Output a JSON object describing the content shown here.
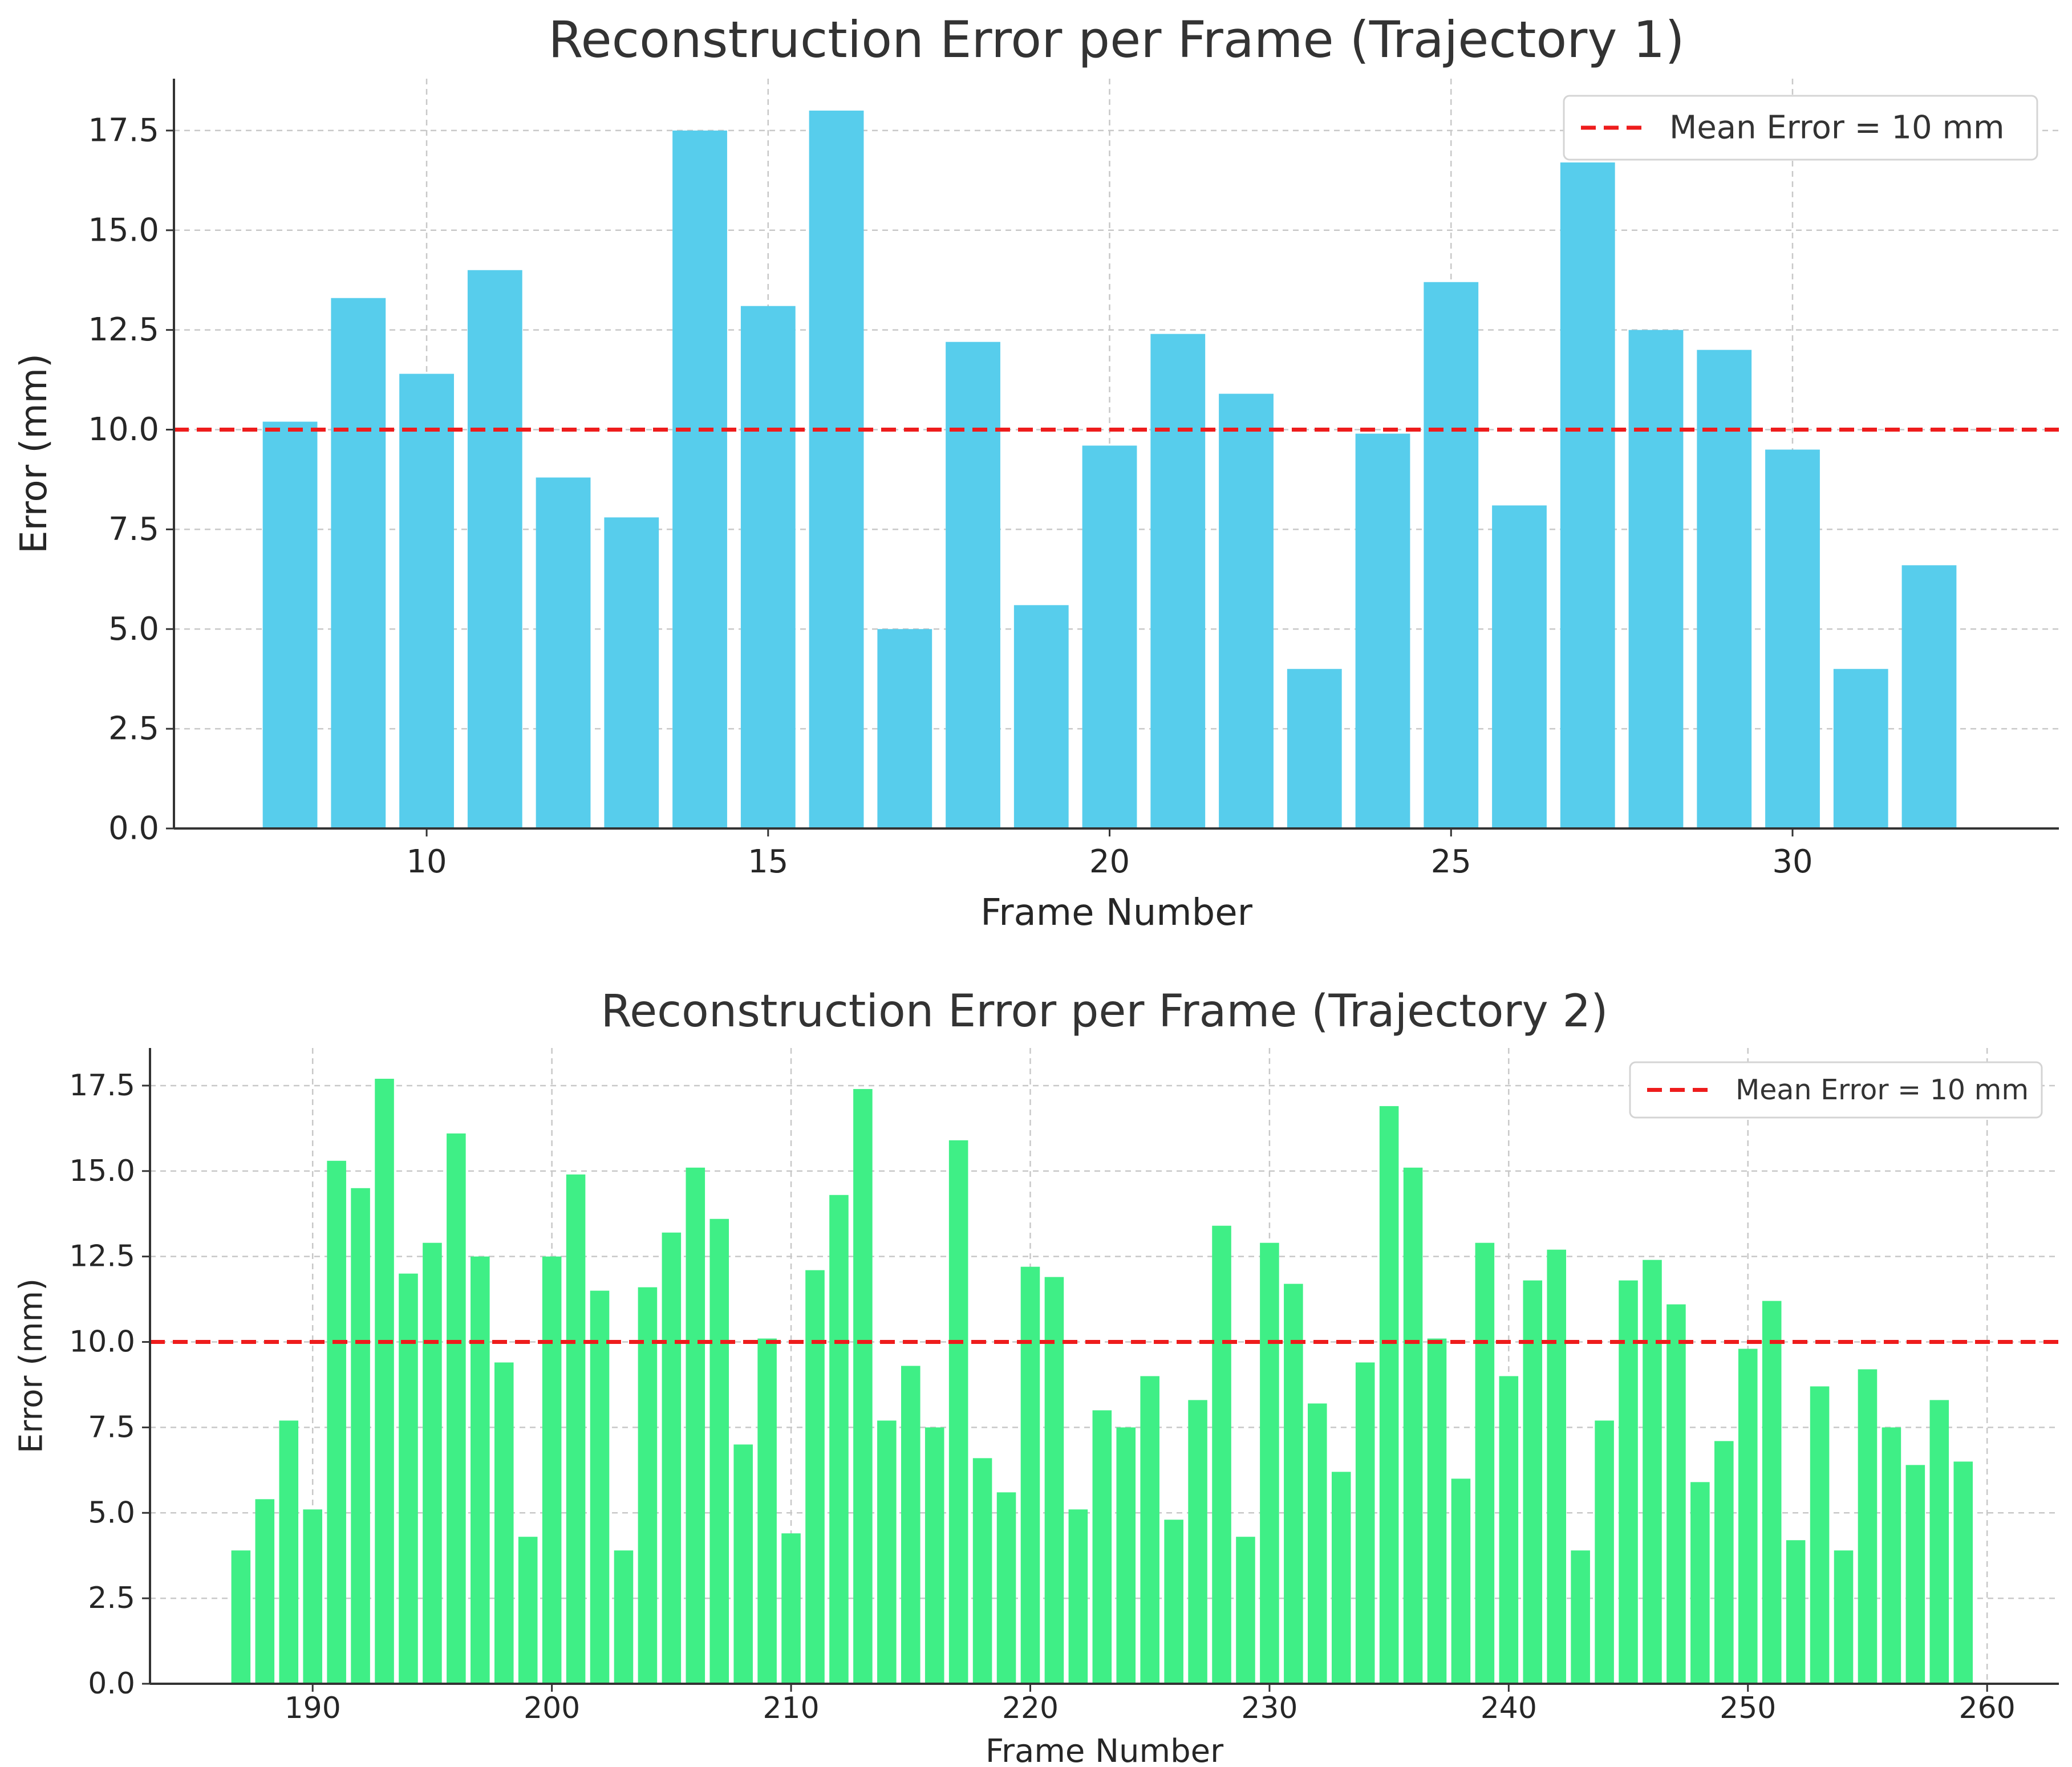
{
  "chart_data": [
    {
      "type": "bar",
      "title": "Reconstruction Error per Frame (Trajectory 1)",
      "xlabel": "Frame Number",
      "ylabel": "Error (mm)",
      "xlim": [
        6.3,
        33.9
      ],
      "ylim": [
        0,
        18.8
      ],
      "xticks": [
        10,
        15,
        20,
        25,
        30
      ],
      "yticks": [
        0.0,
        2.5,
        5.0,
        7.5,
        10.0,
        12.5,
        15.0,
        17.5
      ],
      "grid": true,
      "legend_position": "top-right",
      "bar_color": "#57cdec",
      "x": [
        8,
        9,
        10,
        11,
        12,
        13,
        14,
        15,
        16,
        17,
        18,
        19,
        20,
        21,
        22,
        23,
        24,
        25,
        26,
        27,
        28,
        29,
        30,
        31,
        32
      ],
      "values": [
        10.2,
        13.3,
        11.4,
        14.0,
        8.8,
        7.8,
        17.5,
        13.1,
        18.0,
        5.0,
        12.2,
        5.6,
        9.6,
        12.4,
        10.9,
        4.0,
        9.9,
        13.7,
        8.1,
        16.7,
        12.5,
        12.0,
        9.5,
        4.0,
        6.6
      ],
      "reference_line": {
        "value": 10,
        "label": "Mean Error = 10 mm",
        "color": "#ee1c1c"
      }
    },
    {
      "type": "bar",
      "title": "Reconstruction Error per Frame (Trajectory 2)",
      "xlabel": "Frame Number",
      "ylabel": "Error (mm)",
      "xlim": [
        183.2,
        263.0
      ],
      "ylim": [
        0,
        18.6
      ],
      "xticks": [
        190,
        200,
        210,
        220,
        230,
        240,
        250,
        260
      ],
      "yticks": [
        0.0,
        2.5,
        5.0,
        7.5,
        10.0,
        12.5,
        15.0,
        17.5
      ],
      "grid": true,
      "legend_position": "top-right",
      "bar_color": "#3fef86",
      "x_start": 187,
      "values": [
        3.9,
        5.4,
        7.7,
        5.1,
        15.3,
        14.5,
        17.7,
        12.0,
        12.9,
        16.1,
        12.5,
        9.4,
        4.3,
        12.5,
        14.9,
        11.5,
        3.9,
        11.6,
        13.2,
        15.1,
        13.6,
        7.0,
        10.1,
        4.4,
        12.1,
        14.3,
        17.4,
        7.7,
        9.3,
        7.5,
        15.9,
        6.6,
        5.6,
        12.2,
        11.9,
        5.1,
        8.0,
        7.5,
        9.0,
        4.8,
        8.3,
        13.4,
        4.3,
        12.9,
        11.7,
        8.2,
        6.2,
        9.4,
        16.9,
        15.1,
        10.1,
        6.0,
        12.9,
        9.0,
        11.8,
        12.7,
        3.9,
        7.7,
        11.8,
        12.4,
        11.1,
        5.9,
        7.1,
        9.8,
        11.2,
        4.2,
        8.7,
        3.9,
        9.2,
        7.5,
        6.4,
        8.3,
        6.5
      ],
      "reference_line": {
        "value": 10,
        "label": "Mean Error = 10 mm",
        "color": "#ee1c1c"
      }
    }
  ]
}
